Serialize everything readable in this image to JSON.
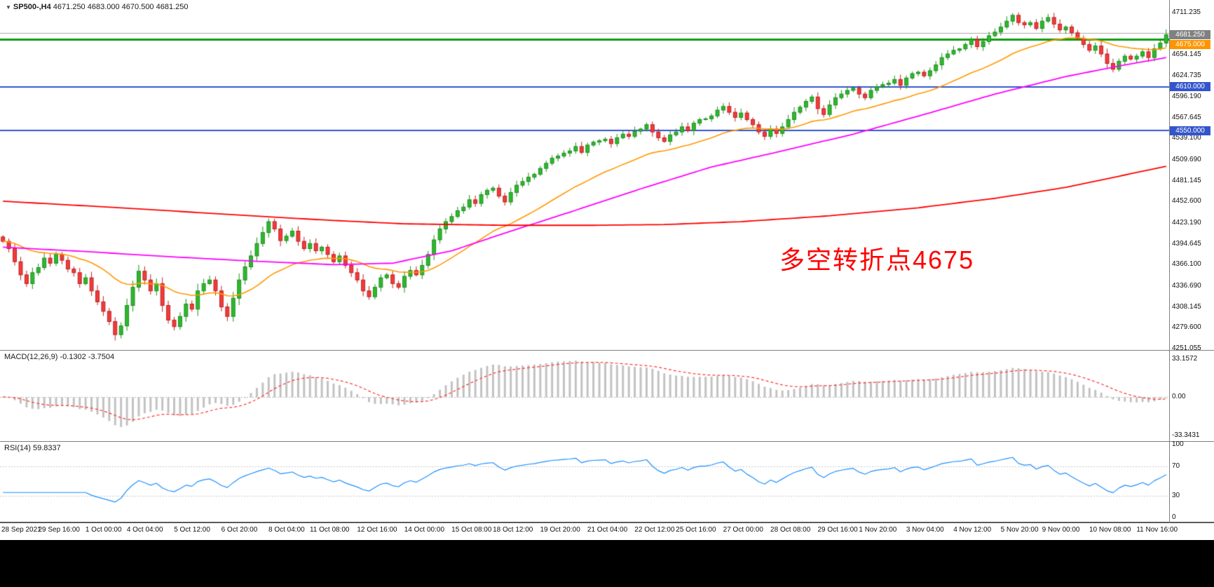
{
  "header": {
    "collapse_icon": "▼",
    "symbol": "SP500-,H4",
    "ohlc_text": "4671.250 4683.000 4670.500 4681.250"
  },
  "annotation": {
    "text": "多空转折点4675",
    "color": "#ff0000"
  },
  "panels": {
    "macd": {
      "title": "MACD(12,26,9)",
      "values": "-0.1302 -3.7504"
    },
    "rsi": {
      "title": "RSI(14)",
      "values": "59.8337"
    }
  },
  "chart_data": {
    "type": "candlestick",
    "symbol": "SP500-",
    "timeframe": "H4",
    "title": "SP500-,H4 4671.250 4683.000 4670.500 4681.250",
    "current_bar": {
      "open": 4671.25,
      "high": 4683.0,
      "low": 4670.5,
      "close": 4681.25
    },
    "price_min": 4249,
    "price_max": 4729,
    "up_color": "#2eb82e",
    "up_stroke": "#1e8f1e",
    "down_color": "#f03c3c",
    "down_stroke": "#c02020",
    "first_open": 4404,
    "closes": [
      4398,
      4388,
      4370,
      4352,
      4340,
      4355,
      4362,
      4375,
      4368,
      4380,
      4372,
      4360,
      4355,
      4340,
      4348,
      4330,
      4315,
      4302,
      4288,
      4270,
      4282,
      4310,
      4335,
      4357,
      4345,
      4330,
      4340,
      4310,
      4290,
      4281,
      4295,
      4312,
      4305,
      4330,
      4340,
      4345,
      4330,
      4308,
      4295,
      4320,
      4345,
      4363,
      4378,
      4395,
      4410,
      4425,
      4415,
      4399,
      4405,
      4412,
      4398,
      4388,
      4395,
      4385,
      4390,
      4380,
      4370,
      4378,
      4365,
      4355,
      4345,
      4330,
      4322,
      4335,
      4348,
      4352,
      4340,
      4335,
      4350,
      4358,
      4352,
      4365,
      4380,
      4400,
      4415,
      4425,
      4432,
      4440,
      4445,
      4455,
      4450,
      4462,
      4468,
      4471,
      4460,
      4452,
      4465,
      4475,
      4480,
      4486,
      4490,
      4498,
      4505,
      4512,
      4515,
      4519,
      4522,
      4528,
      4520,
      4530,
      4534,
      4536,
      4538,
      4532,
      4540,
      4545,
      4542,
      4549,
      4552,
      4558,
      4548,
      4540,
      4535,
      4544,
      4548,
      4555,
      4550,
      4560,
      4565,
      4566,
      4570,
      4578,
      4583,
      4575,
      4568,
      4574,
      4565,
      4558,
      4548,
      4542,
      4552,
      4546,
      4555,
      4565,
      4575,
      4582,
      4590,
      4596,
      4580,
      4572,
      4585,
      4595,
      4600,
      4605,
      4608,
      4600,
      4595,
      4605,
      4610,
      4613,
      4615,
      4620,
      4612,
      4622,
      4628,
      4630,
      4625,
      4632,
      4640,
      4650,
      4655,
      4660,
      4662,
      4668,
      4675,
      4665,
      4672,
      4680,
      4685,
      4692,
      4700,
      4708,
      4698,
      4695,
      4698,
      4690,
      4700,
      4705,
      4696,
      4688,
      4692,
      4684,
      4676,
      4668,
      4660,
      4666,
      4655,
      4642,
      4634,
      4645,
      4652,
      4648,
      4652,
      4658,
      4650,
      4662,
      4670,
      4681.25
    ],
    "hlines": [
      {
        "price": 4684.0,
        "color": "#aaaaaa",
        "width": 1
      },
      {
        "price": 4675.0,
        "color": "#0f9d0f",
        "width": 3
      },
      {
        "price": 4610.0,
        "color": "#3355cc",
        "width": 2
      },
      {
        "price": 4550.0,
        "color": "#3355cc",
        "width": 2
      }
    ],
    "ma_fast": {
      "period": 24,
      "color": "#ff9900"
    },
    "ma_mid": {
      "color": "#ff00ff",
      "points": [
        [
          0,
          4390
        ],
        [
          14,
          4384
        ],
        [
          28,
          4377
        ],
        [
          42,
          4371
        ],
        [
          56,
          4366
        ],
        [
          66,
          4368
        ],
        [
          76,
          4385
        ],
        [
          86,
          4412
        ],
        [
          96,
          4438
        ],
        [
          108,
          4470
        ],
        [
          120,
          4500
        ],
        [
          132,
          4522
        ],
        [
          144,
          4545
        ],
        [
          156,
          4572
        ],
        [
          168,
          4600
        ],
        [
          180,
          4624
        ],
        [
          190,
          4640
        ],
        [
          197,
          4650
        ]
      ]
    },
    "ma_slow": {
      "color": "#ff0000",
      "points": [
        [
          0,
          4453
        ],
        [
          20,
          4444
        ],
        [
          40,
          4434
        ],
        [
          55,
          4427
        ],
        [
          68,
          4422
        ],
        [
          85,
          4420
        ],
        [
          100,
          4420
        ],
        [
          112,
          4421
        ],
        [
          125,
          4425
        ],
        [
          140,
          4433
        ],
        [
          155,
          4444
        ],
        [
          168,
          4457
        ],
        [
          180,
          4472
        ],
        [
          190,
          4489
        ],
        [
          197,
          4501
        ]
      ]
    },
    "macd": {
      "fast": 12,
      "slow": 26,
      "signal_period": 9,
      "current_main": -0.1302,
      "current_signal": -3.7504,
      "range": [
        -38.5,
        40.3
      ],
      "hist_color": "#c2c2c2",
      "signal_color": "#ff3333",
      "ticks": [
        "33.1572",
        "0.00",
        "-33.3431"
      ]
    },
    "rsi": {
      "period": 14,
      "current": 59.8337,
      "levels": [
        30,
        70
      ],
      "color": "#1e90ff",
      "ticks": [
        "100",
        "70",
        "30",
        "0"
      ]
    },
    "y_axis": {
      "ticks": [
        "4711.235",
        "4654.145",
        "4624.735",
        "4596.190",
        "4567.645",
        "4539.100",
        "4509.690",
        "4481.145",
        "4452.600",
        "4423.190",
        "4394.645",
        "4366.100",
        "4336.690",
        "4308.145",
        "4279.600",
        "4251.055"
      ],
      "badges": [
        {
          "text": "4681.250",
          "bg": "#808080"
        },
        {
          "text": "4675.000",
          "bg": "#ff9500"
        },
        {
          "text": "4610.000",
          "bg": "#3355cc"
        },
        {
          "text": "4550.000",
          "bg": "#3355cc"
        }
      ]
    },
    "x_labels": [
      {
        "text": "28 Sep 2021",
        "bar": 0
      },
      {
        "text": "29 Sep 16:00",
        "bar": 10
      },
      {
        "text": "1 Oct 00:00",
        "bar": 18
      },
      {
        "text": "4 Oct 04:00",
        "bar": 25
      },
      {
        "text": "5 Oct 12:00",
        "bar": 33
      },
      {
        "text": "6 Oct 20:00",
        "bar": 41
      },
      {
        "text": "8 Oct 04:00",
        "bar": 49
      },
      {
        "text": "11 Oct 08:00",
        "bar": 56
      },
      {
        "text": "12 Oct 16:00",
        "bar": 64
      },
      {
        "text": "14 Oct 00:00",
        "bar": 72
      },
      {
        "text": "15 Oct 08:00",
        "bar": 80
      },
      {
        "text": "18 Oct 12:00",
        "bar": 87
      },
      {
        "text": "19 Oct 20:00",
        "bar": 95
      },
      {
        "text": "21 Oct 04:00",
        "bar": 103
      },
      {
        "text": "22 Oct 12:00",
        "bar": 111
      },
      {
        "text": "25 Oct 16:00",
        "bar": 118
      },
      {
        "text": "27 Oct 00:00",
        "bar": 126
      },
      {
        "text": "28 Oct 08:00",
        "bar": 134
      },
      {
        "text": "29 Oct 16:00",
        "bar": 142
      },
      {
        "text": "1 Nov 20:00",
        "bar": 149
      },
      {
        "text": "3 Nov 04:00",
        "bar": 157
      },
      {
        "text": "4 Nov 12:00",
        "bar": 165
      },
      {
        "text": "5 Nov 20:00",
        "bar": 173
      },
      {
        "text": "9 Nov 00:00",
        "bar": 180
      },
      {
        "text": "10 Nov 08:00",
        "bar": 188
      },
      {
        "text": "11 Nov 16:00",
        "bar": 196
      }
    ]
  }
}
